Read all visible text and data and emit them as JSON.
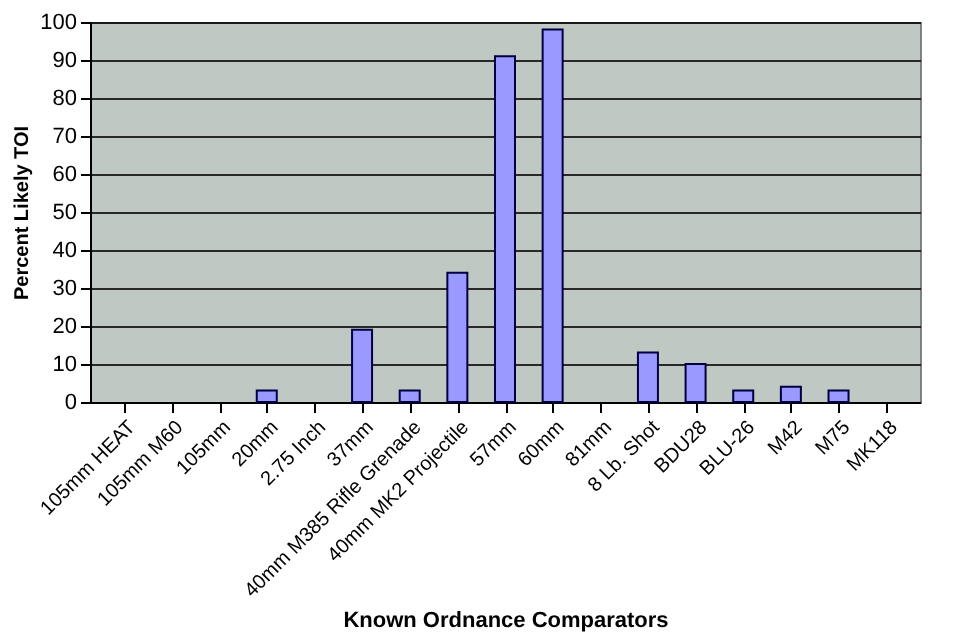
{
  "chart_data": {
    "type": "bar",
    "xlabel": "Known Ordnance Comparators",
    "ylabel": "Percent Likely TOI",
    "categories": [
      "105mm HEAT",
      "105mm M60",
      "105mm",
      "20mm",
      "2.75 Inch",
      "37mm",
      "40mm M385 Rifle Grenade",
      "40mm MK2 Projectile",
      "57mm",
      "60mm",
      "81mm",
      "8 Lb. Shot",
      "BDU28",
      "BLU-26",
      "M42",
      "M75",
      "MK118"
    ],
    "values": [
      0,
      0,
      0,
      3,
      0,
      19,
      3,
      34,
      91,
      98,
      0,
      13,
      10,
      3,
      4,
      3,
      0
    ],
    "color": "#9999ff",
    "ylim": [
      0,
      100
    ],
    "yticks": [
      0,
      10,
      20,
      30,
      40,
      50,
      60,
      70,
      80,
      90,
      100
    ],
    "grid": "y"
  }
}
